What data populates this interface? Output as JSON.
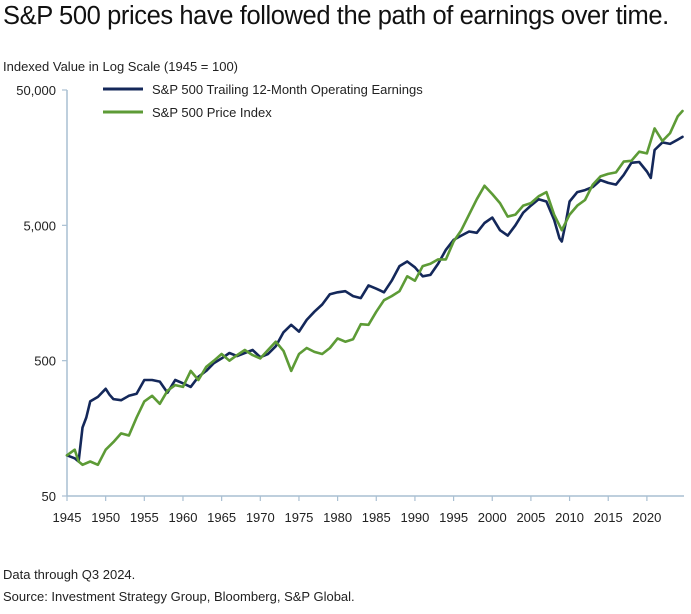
{
  "title": "S&P 500 prices have followed the path of earnings over time.",
  "subtitle": "Indexed Value in Log Scale (1945 = 100)",
  "footnotes": {
    "data_through": "Data through Q3 2024.",
    "source": "Source: Investment Strategy Group, Bloomberg, S&P Global."
  },
  "colors": {
    "earnings": "#14285a",
    "price": "#5d9b36",
    "axis": "#a9bfd2"
  },
  "chart_data": {
    "type": "line",
    "yscale": "log",
    "ylim": [
      50,
      50000
    ],
    "xlim": [
      1945,
      2024.8
    ],
    "yticks": [
      50,
      500,
      5000,
      50000
    ],
    "ytick_labels": [
      "50",
      "500",
      "5,000",
      "50,000"
    ],
    "xticks": [
      1945,
      1950,
      1955,
      1960,
      1965,
      1970,
      1975,
      1980,
      1985,
      1990,
      1995,
      2000,
      2005,
      2010,
      2015,
      2020
    ],
    "legend_position": "top-left",
    "series": [
      {
        "name": "S&P 500 Trailing 12-Month Operating Earnings",
        "color": "#14285a",
        "points": [
          [
            1945,
            100
          ],
          [
            1946,
            95
          ],
          [
            1946.5,
            90
          ],
          [
            1947,
            160
          ],
          [
            1947.5,
            190
          ],
          [
            1948,
            250
          ],
          [
            1949,
            270
          ],
          [
            1950,
            310
          ],
          [
            1950.5,
            280
          ],
          [
            1951,
            260
          ],
          [
            1952,
            255
          ],
          [
            1953,
            275
          ],
          [
            1954,
            285
          ],
          [
            1955,
            360
          ],
          [
            1956,
            360
          ],
          [
            1957,
            350
          ],
          [
            1958,
            290
          ],
          [
            1959,
            360
          ],
          [
            1960,
            340
          ],
          [
            1961,
            320
          ],
          [
            1962,
            380
          ],
          [
            1963,
            420
          ],
          [
            1964,
            480
          ],
          [
            1965,
            520
          ],
          [
            1966,
            570
          ],
          [
            1967,
            540
          ],
          [
            1968,
            570
          ],
          [
            1969,
            600
          ],
          [
            1970,
            530
          ],
          [
            1971,
            560
          ],
          [
            1972,
            640
          ],
          [
            1973,
            810
          ],
          [
            1974,
            920
          ],
          [
            1975,
            820
          ],
          [
            1976,
            1000
          ],
          [
            1977,
            1150
          ],
          [
            1978,
            1300
          ],
          [
            1979,
            1550
          ],
          [
            1980,
            1600
          ],
          [
            1981,
            1630
          ],
          [
            1982,
            1500
          ],
          [
            1983,
            1450
          ],
          [
            1984,
            1800
          ],
          [
            1985,
            1700
          ],
          [
            1986,
            1600
          ],
          [
            1987,
            1950
          ],
          [
            1988,
            2500
          ],
          [
            1989,
            2700
          ],
          [
            1990,
            2450
          ],
          [
            1991,
            2100
          ],
          [
            1992,
            2150
          ],
          [
            1993,
            2600
          ],
          [
            1994,
            3300
          ],
          [
            1995,
            3900
          ],
          [
            1996,
            4200
          ],
          [
            1997,
            4500
          ],
          [
            1998,
            4400
          ],
          [
            1999,
            5200
          ],
          [
            2000,
            5700
          ],
          [
            2001,
            4600
          ],
          [
            2002,
            4200
          ],
          [
            2003,
            5000
          ],
          [
            2004,
            6200
          ],
          [
            2005,
            7000
          ],
          [
            2006,
            7800
          ],
          [
            2007,
            7500
          ],
          [
            2008,
            5500
          ],
          [
            2008.7,
            4000
          ],
          [
            2009,
            3800
          ],
          [
            2009.5,
            5200
          ],
          [
            2010,
            7500
          ],
          [
            2011,
            8800
          ],
          [
            2012,
            9100
          ],
          [
            2013,
            9600
          ],
          [
            2014,
            10800
          ],
          [
            2015,
            10300
          ],
          [
            2016,
            10000
          ],
          [
            2017,
            11800
          ],
          [
            2018,
            14500
          ],
          [
            2019,
            14700
          ],
          [
            2020,
            12500
          ],
          [
            2020.5,
            11200
          ],
          [
            2021,
            18000
          ],
          [
            2022,
            20500
          ],
          [
            2023,
            20000
          ],
          [
            2024,
            21500
          ],
          [
            2024.6,
            22500
          ]
        ]
      },
      {
        "name": "S&P 500 Price Index",
        "color": "#5d9b36",
        "points": [
          [
            1945,
            100
          ],
          [
            1946,
            110
          ],
          [
            1946.5,
            90
          ],
          [
            1947,
            85
          ],
          [
            1948,
            90
          ],
          [
            1949,
            85
          ],
          [
            1950,
            110
          ],
          [
            1951,
            125
          ],
          [
            1952,
            145
          ],
          [
            1953,
            140
          ],
          [
            1954,
            190
          ],
          [
            1955,
            250
          ],
          [
            1956,
            275
          ],
          [
            1957,
            240
          ],
          [
            1958,
            300
          ],
          [
            1959,
            330
          ],
          [
            1960,
            320
          ],
          [
            1961,
            420
          ],
          [
            1962,
            360
          ],
          [
            1963,
            450
          ],
          [
            1964,
            500
          ],
          [
            1965,
            560
          ],
          [
            1966,
            500
          ],
          [
            1967,
            550
          ],
          [
            1968,
            600
          ],
          [
            1969,
            550
          ],
          [
            1970,
            520
          ],
          [
            1971,
            600
          ],
          [
            1972,
            690
          ],
          [
            1973,
            590
          ],
          [
            1974,
            420
          ],
          [
            1975,
            560
          ],
          [
            1976,
            620
          ],
          [
            1977,
            580
          ],
          [
            1978,
            560
          ],
          [
            1979,
            620
          ],
          [
            1980,
            730
          ],
          [
            1981,
            690
          ],
          [
            1982,
            720
          ],
          [
            1983,
            930
          ],
          [
            1984,
            920
          ],
          [
            1985,
            1150
          ],
          [
            1986,
            1400
          ],
          [
            1987,
            1500
          ],
          [
            1988,
            1630
          ],
          [
            1989,
            2100
          ],
          [
            1990,
            1950
          ],
          [
            1991,
            2500
          ],
          [
            1992,
            2600
          ],
          [
            1993,
            2800
          ],
          [
            1994,
            2800
          ],
          [
            1995,
            3800
          ],
          [
            1996,
            4600
          ],
          [
            1997,
            6000
          ],
          [
            1998,
            7800
          ],
          [
            1999,
            9800
          ],
          [
            2000,
            8500
          ],
          [
            2001,
            7300
          ],
          [
            2002,
            5800
          ],
          [
            2003,
            6000
          ],
          [
            2004,
            7000
          ],
          [
            2005,
            7300
          ],
          [
            2006,
            8200
          ],
          [
            2007,
            8800
          ],
          [
            2008,
            6000
          ],
          [
            2009,
            4600
          ],
          [
            2010,
            6000
          ],
          [
            2011,
            7000
          ],
          [
            2012,
            7700
          ],
          [
            2013,
            10000
          ],
          [
            2014,
            11500
          ],
          [
            2015,
            12000
          ],
          [
            2016,
            12300
          ],
          [
            2017,
            14800
          ],
          [
            2018,
            15000
          ],
          [
            2019,
            17500
          ],
          [
            2020,
            17000
          ],
          [
            2021,
            26000
          ],
          [
            2022,
            21000
          ],
          [
            2023,
            24000
          ],
          [
            2024,
            32000
          ],
          [
            2024.6,
            35000
          ]
        ]
      }
    ]
  }
}
